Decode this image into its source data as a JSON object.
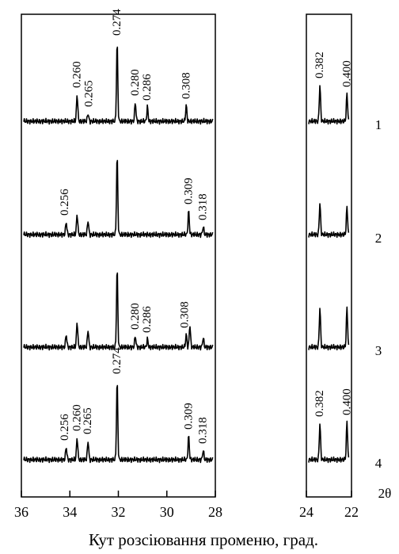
{
  "chart_data": {
    "type": "line",
    "xlabel": "Кут розсіювання променю, град.",
    "axis_symbol": "2θ",
    "x_axis_reversed": true,
    "panels": [
      {
        "name": "left",
        "xlim": [
          36,
          28
        ],
        "ticks": [
          36,
          34,
          32,
          30,
          28
        ]
      },
      {
        "name": "right",
        "xlim": [
          24,
          22
        ],
        "ticks": [
          24,
          22
        ]
      }
    ],
    "series": [
      {
        "name": "1",
        "peaks": [
          {
            "x": 33.7,
            "h": 34
          },
          {
            "x": 33.25,
            "h": 10
          },
          {
            "x": 32.05,
            "h": 100
          },
          {
            "x": 31.3,
            "h": 24
          },
          {
            "x": 30.8,
            "h": 18
          },
          {
            "x": 29.2,
            "h": 20
          },
          {
            "x": 23.4,
            "h": 46
          },
          {
            "x": 22.2,
            "h": 35
          }
        ],
        "labels": [
          {
            "text": "0.260",
            "x": 33.7
          },
          {
            "text": "0.265",
            "x": 33.2
          },
          {
            "text": "0.274",
            "x": 32.05
          },
          {
            "text": "0.280",
            "x": 31.3
          },
          {
            "text": "0.286",
            "x": 30.8
          },
          {
            "text": "0.308",
            "x": 29.2
          },
          {
            "text": "0.382",
            "x": 23.4
          },
          {
            "text": "0.400",
            "x": 22.2
          }
        ]
      },
      {
        "name": "2",
        "peaks": [
          {
            "x": 34.15,
            "h": 16
          },
          {
            "x": 33.7,
            "h": 26
          },
          {
            "x": 33.25,
            "h": 18
          },
          {
            "x": 32.05,
            "h": 100
          },
          {
            "x": 29.1,
            "h": 30
          },
          {
            "x": 28.5,
            "h": 10
          },
          {
            "x": 23.4,
            "h": 40
          },
          {
            "x": 22.2,
            "h": 35
          }
        ],
        "labels": [
          {
            "text": "0.256",
            "x": 34.2
          },
          {
            "text": "0.309",
            "x": 29.1
          },
          {
            "text": "0.318",
            "x": 28.5
          }
        ]
      },
      {
        "name": "3",
        "peaks": [
          {
            "x": 34.15,
            "h": 16
          },
          {
            "x": 33.7,
            "h": 32
          },
          {
            "x": 33.25,
            "h": 22
          },
          {
            "x": 32.05,
            "h": 100
          },
          {
            "x": 31.3,
            "h": 14
          },
          {
            "x": 30.8,
            "h": 10
          },
          {
            "x": 29.2,
            "h": 16
          },
          {
            "x": 29.05,
            "h": 28
          },
          {
            "x": 28.5,
            "h": 12
          },
          {
            "x": 23.4,
            "h": 50
          },
          {
            "x": 22.2,
            "h": 50
          }
        ],
        "labels": [
          {
            "text": "0.280",
            "x": 31.3
          },
          {
            "text": "0.286",
            "x": 30.8
          },
          {
            "text": "0.308",
            "x": 29.25
          }
        ]
      },
      {
        "name": "4",
        "peaks": [
          {
            "x": 34.15,
            "h": 16
          },
          {
            "x": 33.7,
            "h": 28
          },
          {
            "x": 33.25,
            "h": 24
          },
          {
            "x": 32.05,
            "h": 100
          },
          {
            "x": 29.1,
            "h": 30
          },
          {
            "x": 28.5,
            "h": 12
          },
          {
            "x": 23.4,
            "h": 46
          },
          {
            "x": 22.2,
            "h": 48
          }
        ],
        "labels": [
          {
            "text": "0.256",
            "x": 34.2
          },
          {
            "text": "0.260",
            "x": 33.7
          },
          {
            "text": "0.265",
            "x": 33.25
          },
          {
            "text": "0.274",
            "x": 32.05
          },
          {
            "text": "0.309",
            "x": 29.1
          },
          {
            "text": "0.318",
            "x": 28.5
          },
          {
            "text": "0.382",
            "x": 23.4
          },
          {
            "text": "0.400",
            "x": 22.2
          }
        ]
      }
    ]
  }
}
